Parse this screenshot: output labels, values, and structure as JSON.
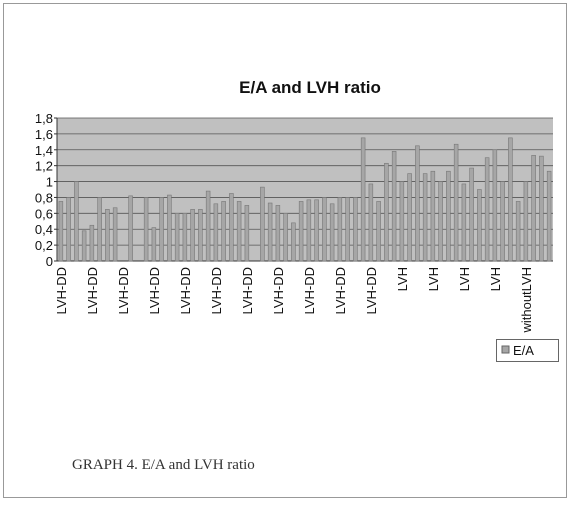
{
  "chart_data": {
    "type": "bar",
    "title": "E/A and LVH ratio",
    "caption": "GRAPH 4. E/A and LVH ratio",
    "categories": [
      "LVH-DD",
      null,
      null,
      null,
      "LVH-DD",
      null,
      null,
      null,
      "LVH-DD",
      null,
      null,
      null,
      "LVH-DD",
      null,
      null,
      null,
      "LVH-DD",
      null,
      null,
      null,
      "LVH-DD",
      null,
      null,
      null,
      "LVH-DD",
      null,
      null,
      null,
      "LVH-DD",
      null,
      null,
      null,
      "LVH-DD",
      null,
      null,
      null,
      "LVH-DD",
      null,
      null,
      null,
      "LVH-DD",
      null,
      null,
      null,
      "LVH",
      null,
      null,
      null,
      "LVH",
      null,
      null,
      null,
      "LVH",
      null,
      null,
      null,
      "LVH",
      null,
      null,
      null,
      "withoutLVH",
      null,
      null,
      null
    ],
    "series": [
      {
        "name": "E/A",
        "color": "#a6a6a6",
        "values": [
          0.75,
          0.8,
          1.0,
          0.38,
          0.45,
          0.8,
          0.65,
          0.67,
          0,
          0.82,
          0,
          0.8,
          0.42,
          0.8,
          0.83,
          0.6,
          0.6,
          0.65,
          0.65,
          0.88,
          0.72,
          0.75,
          0.85,
          0.75,
          0.7,
          0,
          0.93,
          0.73,
          0.7,
          0.6,
          0.48,
          0.75,
          0.77,
          0.77,
          0.8,
          0.72,
          0.8,
          0.8,
          0.8,
          1.55,
          0.97,
          0.75,
          1.23,
          1.38,
          1.0,
          1.1,
          1.45,
          1.1,
          1.13,
          1.0,
          1.13,
          1.47,
          0.97,
          1.17,
          0.9,
          1.3,
          1.4,
          1.0,
          1.55,
          0.75,
          1.0,
          1.33,
          1.32,
          1.13
        ]
      }
    ],
    "ylim": [
      0,
      1.8
    ],
    "yticks": [
      0,
      {
        "value": 0.2,
        "label": "0,2"
      },
      {
        "value": 0.4,
        "label": "0,4"
      },
      {
        "value": 0.6,
        "label": "0,6"
      },
      {
        "value": 0.8,
        "label": "0,8"
      },
      1,
      {
        "value": 1.2,
        "label": "1,2"
      },
      {
        "value": 1.4,
        "label": "1,4"
      },
      {
        "value": 1.6,
        "label": "1,6"
      },
      {
        "value": 1.8,
        "label": "1,8"
      }
    ],
    "grid": true,
    "legend": "right"
  }
}
